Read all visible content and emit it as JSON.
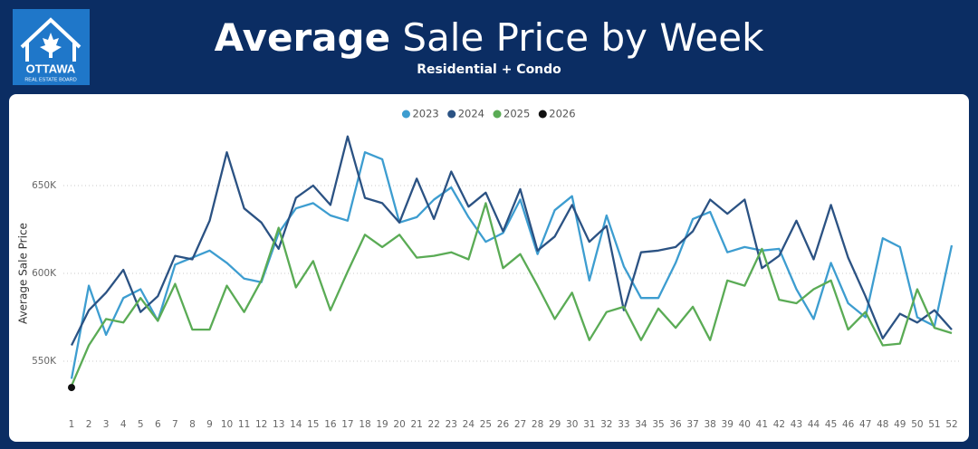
{
  "logo": {
    "name": "OTTAWA",
    "tagline": "REAL ESTATE BOARD"
  },
  "chart_data": {
    "type": "line",
    "title": "Average Sale Price by Week",
    "subtitle": "Residential + Condo",
    "y_label": "Average Sale Price",
    "categories": [
      "1",
      "2",
      "3",
      "4",
      "5",
      "6",
      "7",
      "8",
      "9",
      "10",
      "11",
      "12",
      "13",
      "14",
      "15",
      "16",
      "17",
      "18",
      "19",
      "20",
      "21",
      "22",
      "23",
      "24",
      "25",
      "26",
      "27",
      "28",
      "29",
      "30",
      "31",
      "32",
      "33",
      "34",
      "35",
      "36",
      "37",
      "38",
      "39",
      "40",
      "41",
      "42",
      "43",
      "44",
      "45",
      "46",
      "47",
      "48",
      "49",
      "50",
      "51",
      "52"
    ],
    "ylim": [
      525000,
      683000
    ],
    "yticks": [
      {
        "value": 550000,
        "label": "550K"
      },
      {
        "value": 600000,
        "label": "600K"
      },
      {
        "value": 650000,
        "label": "650K"
      }
    ],
    "grid": true,
    "legend": "top",
    "series": [
      {
        "name": "2023",
        "color": "#3d9dd0",
        "values": [
          540000,
          593000,
          565000,
          586000,
          591000,
          573000,
          605000,
          609000,
          613000,
          606000,
          597000,
          595000,
          623000,
          637000,
          640000,
          633000,
          630000,
          669000,
          665000,
          629000,
          632000,
          642000,
          649000,
          632000,
          618000,
          623000,
          642000,
          611000,
          636000,
          644000,
          596000,
          633000,
          604000,
          586000,
          586000,
          606000,
          631000,
          635000,
          612000,
          615000,
          613000,
          614000,
          591000,
          574000,
          606000,
          583000,
          575000,
          620000,
          615000,
          575000,
          570000,
          616000
        ]
      },
      {
        "name": "2024",
        "color": "#2b5283",
        "values": [
          559000,
          579000,
          589000,
          602000,
          578000,
          587000,
          610000,
          608000,
          630000,
          669000,
          637000,
          629000,
          614000,
          643000,
          650000,
          639000,
          678000,
          643000,
          640000,
          629000,
          654000,
          631000,
          658000,
          638000,
          646000,
          624000,
          648000,
          613000,
          621000,
          639000,
          618000,
          627000,
          579000,
          612000,
          613000,
          615000,
          624000,
          642000,
          634000,
          642000,
          603000,
          610000,
          630000,
          608000,
          639000,
          609000,
          587000,
          563000,
          577000,
          572000,
          579000,
          568000
        ]
      },
      {
        "name": "2025",
        "color": "#5aab55",
        "values": [
          536000,
          559000,
          574000,
          572000,
          586000,
          573000,
          594000,
          568000,
          568000,
          593000,
          578000,
          596000,
          626000,
          592000,
          607000,
          579000,
          601000,
          622000,
          615000,
          622000,
          609000,
          610000,
          612000,
          608000,
          640000,
          603000,
          611000,
          593000,
          574000,
          589000,
          562000,
          578000,
          581000,
          562000,
          580000,
          569000,
          581000,
          562000,
          596000,
          593000,
          614000,
          585000,
          583000,
          591000,
          596000,
          568000,
          578000,
          559000,
          560000,
          591000,
          569000,
          566000
        ]
      },
      {
        "name": "2026",
        "color": "#111111",
        "values": [
          535000,
          null,
          null,
          null,
          null,
          null,
          null,
          null,
          null,
          null,
          null,
          null,
          null,
          null,
          null,
          null,
          null,
          null,
          null,
          null,
          null,
          null,
          null,
          null,
          null,
          null,
          null,
          null,
          null,
          null,
          null,
          null,
          null,
          null,
          null,
          null,
          null,
          null,
          null,
          null,
          null,
          null,
          null,
          null,
          null,
          null,
          null,
          null,
          null,
          null,
          null,
          null
        ]
      }
    ]
  }
}
